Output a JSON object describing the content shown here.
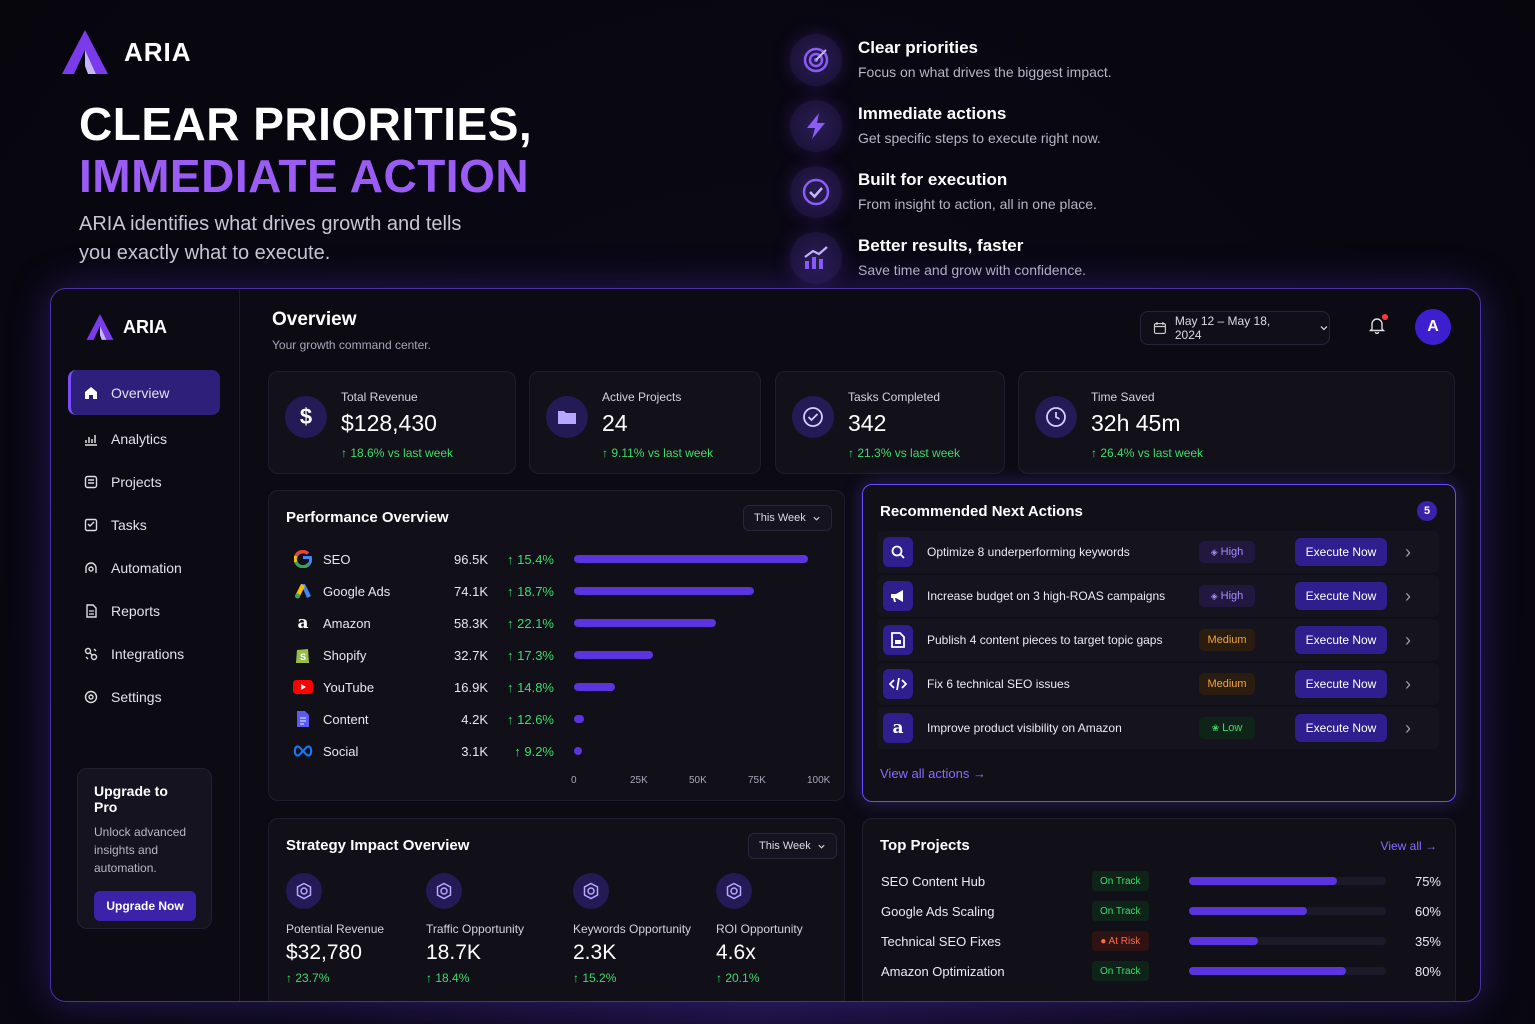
{
  "brand": "ARIA",
  "hero": {
    "title_line1": "CLEAR PRIORITIES,",
    "title_line2": "IMMEDIATE ACTION",
    "subtitle": "ARIA identifies what drives growth and tells you exactly what to execute."
  },
  "features": [
    {
      "title": "Clear priorities",
      "desc": "Focus on what drives the biggest impact.",
      "icon": "target-icon"
    },
    {
      "title": "Immediate actions",
      "desc": "Get specific steps to execute right now.",
      "icon": "lightning-icon"
    },
    {
      "title": "Built for execution",
      "desc": "From insight to action, all in one place.",
      "icon": "check-circle-icon"
    },
    {
      "title": "Better results, faster",
      "desc": "Save time and grow with confidence.",
      "icon": "growth-chart-icon"
    }
  ],
  "sidebar": {
    "items": [
      {
        "label": "Overview",
        "icon": "home-icon",
        "active": true
      },
      {
        "label": "Analytics",
        "icon": "analytics-icon"
      },
      {
        "label": "Projects",
        "icon": "projects-icon"
      },
      {
        "label": "Tasks",
        "icon": "tasks-icon"
      },
      {
        "label": "Automation",
        "icon": "automation-icon"
      },
      {
        "label": "Reports",
        "icon": "reports-icon"
      },
      {
        "label": "Integrations",
        "icon": "integrations-icon"
      },
      {
        "label": "Settings",
        "icon": "settings-icon"
      }
    ],
    "upgrade": {
      "title": "Upgrade to Pro",
      "desc": "Unlock advanced insights and automation.",
      "button": "Upgrade Now"
    }
  },
  "header": {
    "title": "Overview",
    "subtitle": "Your growth command center.",
    "date_range": "May 12 – May 18, 2024",
    "avatar_initial": "A"
  },
  "kpis": [
    {
      "label": "Total Revenue",
      "value": "$128,430",
      "delta": "18.6% vs last week",
      "icon": "dollar-icon"
    },
    {
      "label": "Active Projects",
      "value": "24",
      "delta": "9.11% vs last week",
      "icon": "folder-icon"
    },
    {
      "label": "Tasks Completed",
      "value": "342",
      "delta": "21.3% vs last week",
      "icon": "check-icon"
    },
    {
      "label": "Time Saved",
      "value": "32h 45m",
      "delta": "26.4% vs last week",
      "icon": "clock-icon"
    }
  ],
  "performance": {
    "title": "Performance Overview",
    "period": "This Week",
    "rows": [
      {
        "name": "SEO",
        "value": "96.5K",
        "delta": "15.4%",
        "share": 96.5
      },
      {
        "name": "Google Ads",
        "value": "74.1K",
        "delta": "18.7%",
        "share": 74.1
      },
      {
        "name": "Amazon",
        "value": "58.3K",
        "delta": "22.1%",
        "share": 58.3
      },
      {
        "name": "Shopify",
        "value": "32.7K",
        "delta": "17.3%",
        "share": 32.7
      },
      {
        "name": "YouTube",
        "value": "16.9K",
        "delta": "14.8%",
        "share": 16.9
      },
      {
        "name": "Content",
        "value": "4.2K",
        "delta": "12.6%",
        "share": 4.2
      },
      {
        "name": "Social",
        "value": "3.1K",
        "delta": "9.2%",
        "share": 3.1
      }
    ],
    "axis": [
      "0",
      "25K",
      "50K",
      "75K",
      "100K"
    ],
    "axis_max": 100
  },
  "recommended": {
    "title": "Recommended Next Actions",
    "count": "5",
    "view_all": "View all actions →",
    "rows": [
      {
        "text": "Optimize 8 underperforming keywords",
        "priority": "High",
        "level": "high",
        "action": "Execute Now",
        "icon": "search-icon"
      },
      {
        "text": "Increase budget on 3 high-ROAS campaigns",
        "priority": "High",
        "level": "high",
        "action": "Execute Now",
        "icon": "megaphone-icon"
      },
      {
        "text": "Publish 4 content pieces to target topic gaps",
        "priority": "Medium",
        "level": "medium",
        "action": "Execute Now",
        "icon": "document-icon"
      },
      {
        "text": "Fix 6 technical SEO issues",
        "priority": "Medium",
        "level": "medium",
        "action": "Execute Now",
        "icon": "code-icon"
      },
      {
        "text": "Improve product visibility on Amazon",
        "priority": "Low",
        "level": "low",
        "action": "Execute Now",
        "icon": "amazon-icon"
      }
    ]
  },
  "strategy": {
    "title": "Strategy Impact Overview",
    "period": "This Week",
    "items": [
      {
        "label": "Potential Revenue",
        "value": "$32,780",
        "delta": "23.7%"
      },
      {
        "label": "Traffic Opportunity",
        "value": "18.7K",
        "delta": "18.4%"
      },
      {
        "label": "Keywords Opportunity",
        "value": "2.3K",
        "delta": "15.2%"
      },
      {
        "label": "ROI Opportunity",
        "value": "4.6x",
        "delta": "20.1%"
      }
    ]
  },
  "top_projects": {
    "title": "Top Projects",
    "view_all": "View all →",
    "rows": [
      {
        "name": "SEO Content Hub",
        "status": "On Track",
        "state": "ok",
        "progress": 75,
        "pct": "75%"
      },
      {
        "name": "Google Ads Scaling",
        "status": "On Track",
        "state": "ok",
        "progress": 60,
        "pct": "60%"
      },
      {
        "name": "Technical SEO Fixes",
        "status": "● At Risk",
        "state": "risk",
        "progress": 35,
        "pct": "35%"
      },
      {
        "name": "Amazon Optimization",
        "status": "On Track",
        "state": "ok",
        "progress": 80,
        "pct": "80%"
      }
    ]
  },
  "colors": {
    "accent": "#7c4dff",
    "positive": "#3ddc6a",
    "brand_purple": "#9b5cf6"
  }
}
